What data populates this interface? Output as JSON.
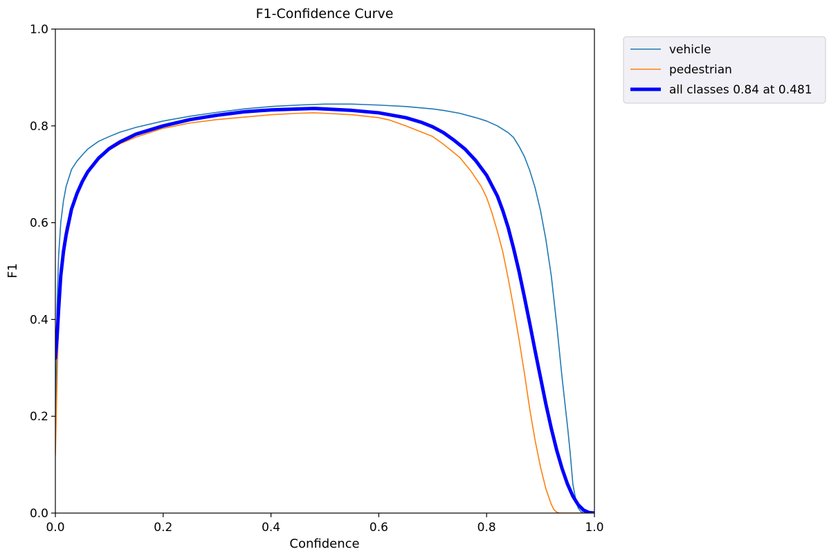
{
  "chart_data": {
    "type": "line",
    "title": "F1-Confidence Curve",
    "xlabel": "Confidence",
    "ylabel": "F1",
    "xlim": [
      0.0,
      1.0
    ],
    "ylim": [
      0.0,
      1.0
    ],
    "xticks": [
      "0.0",
      "0.2",
      "0.4",
      "0.6",
      "0.8",
      "1.0"
    ],
    "yticks": [
      "0.0",
      "0.2",
      "0.4",
      "0.6",
      "0.8",
      "1.0"
    ],
    "grid": false,
    "legend_position": "outside top-right",
    "series": [
      {
        "name": "vehicle",
        "color": "#1f77b4",
        "x": [
          0.0,
          0.003,
          0.006,
          0.01,
          0.015,
          0.02,
          0.03,
          0.04,
          0.05,
          0.06,
          0.08,
          0.1,
          0.12,
          0.15,
          0.2,
          0.25,
          0.3,
          0.35,
          0.4,
          0.45,
          0.5,
          0.55,
          0.6,
          0.65,
          0.7,
          0.72,
          0.75,
          0.78,
          0.8,
          0.82,
          0.84,
          0.85,
          0.86,
          0.87,
          0.88,
          0.89,
          0.9,
          0.91,
          0.92,
          0.93,
          0.94,
          0.95,
          0.955,
          0.96,
          0.965,
          0.97,
          0.975,
          0.98,
          0.99,
          1.0
        ],
        "y": [
          0.13,
          0.42,
          0.53,
          0.6,
          0.645,
          0.675,
          0.71,
          0.727,
          0.74,
          0.752,
          0.768,
          0.778,
          0.787,
          0.797,
          0.81,
          0.82,
          0.828,
          0.835,
          0.84,
          0.843,
          0.845,
          0.845,
          0.843,
          0.84,
          0.835,
          0.832,
          0.826,
          0.817,
          0.81,
          0.8,
          0.786,
          0.776,
          0.758,
          0.737,
          0.708,
          0.672,
          0.625,
          0.565,
          0.49,
          0.39,
          0.28,
          0.18,
          0.125,
          0.06,
          0.03,
          0.01,
          0.003,
          0.0,
          0.0,
          0.0
        ]
      },
      {
        "name": "pedestrian",
        "color": "#ff7f0e",
        "x": [
          0.0,
          0.005,
          0.01,
          0.015,
          0.02,
          0.03,
          0.04,
          0.05,
          0.06,
          0.08,
          0.1,
          0.12,
          0.15,
          0.2,
          0.25,
          0.3,
          0.35,
          0.4,
          0.45,
          0.48,
          0.5,
          0.55,
          0.6,
          0.62,
          0.65,
          0.7,
          0.72,
          0.75,
          0.77,
          0.79,
          0.8,
          0.81,
          0.82,
          0.83,
          0.84,
          0.85,
          0.86,
          0.87,
          0.88,
          0.89,
          0.9,
          0.91,
          0.92,
          0.925,
          0.93,
          0.935,
          0.94,
          0.95,
          1.0
        ],
        "y": [
          0.12,
          0.36,
          0.49,
          0.555,
          0.59,
          0.63,
          0.66,
          0.685,
          0.705,
          0.732,
          0.75,
          0.763,
          0.777,
          0.795,
          0.806,
          0.813,
          0.818,
          0.823,
          0.826,
          0.827,
          0.826,
          0.823,
          0.817,
          0.812,
          0.8,
          0.778,
          0.762,
          0.735,
          0.708,
          0.675,
          0.652,
          0.62,
          0.582,
          0.54,
          0.485,
          0.425,
          0.36,
          0.29,
          0.215,
          0.15,
          0.095,
          0.05,
          0.018,
          0.007,
          0.002,
          0.0,
          0.0,
          0.0,
          0.0
        ]
      },
      {
        "name": "all classes 0.84 at 0.481",
        "color": "#0000ff",
        "x": [
          0.0,
          0.003,
          0.006,
          0.01,
          0.015,
          0.02,
          0.03,
          0.04,
          0.05,
          0.06,
          0.08,
          0.1,
          0.12,
          0.15,
          0.2,
          0.25,
          0.3,
          0.35,
          0.4,
          0.45,
          0.48,
          0.5,
          0.55,
          0.6,
          0.65,
          0.68,
          0.7,
          0.72,
          0.74,
          0.76,
          0.78,
          0.8,
          0.82,
          0.83,
          0.84,
          0.85,
          0.86,
          0.87,
          0.88,
          0.89,
          0.9,
          0.91,
          0.92,
          0.93,
          0.94,
          0.95,
          0.96,
          0.97,
          0.98,
          0.99,
          1.0
        ],
        "y": [
          0.32,
          0.36,
          0.42,
          0.49,
          0.54,
          0.575,
          0.628,
          0.66,
          0.685,
          0.705,
          0.733,
          0.753,
          0.767,
          0.783,
          0.8,
          0.813,
          0.822,
          0.829,
          0.833,
          0.835,
          0.836,
          0.835,
          0.832,
          0.827,
          0.817,
          0.807,
          0.798,
          0.786,
          0.77,
          0.752,
          0.728,
          0.698,
          0.655,
          0.625,
          0.59,
          0.547,
          0.5,
          0.447,
          0.392,
          0.335,
          0.28,
          0.225,
          0.175,
          0.13,
          0.092,
          0.06,
          0.035,
          0.017,
          0.006,
          0.001,
          0.0
        ]
      }
    ]
  }
}
